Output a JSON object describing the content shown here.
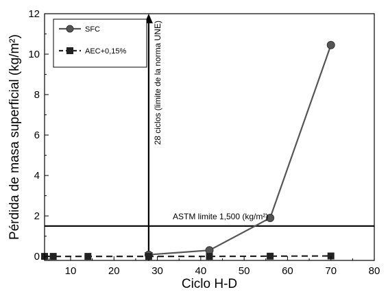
{
  "chart_data": {
    "type": "line",
    "title": "",
    "xlabel": "Ciclo H-D",
    "ylabel": "Pérdida de masa superficial (kg/m²)",
    "xlim": [
      4,
      80
    ],
    "ylim": [
      -0.2,
      12
    ],
    "xticks": [
      10,
      20,
      30,
      40,
      50,
      60,
      70,
      80
    ],
    "yticks": [
      0,
      2,
      4,
      6,
      8,
      10,
      12
    ],
    "grid": false,
    "legend_position": "top-left",
    "series": [
      {
        "name": "SFC",
        "marker": "circle",
        "line": "solid",
        "color": "#555555",
        "x": [
          28,
          42,
          56,
          70
        ],
        "y": [
          0.08,
          0.3,
          1.9,
          10.45
        ]
      },
      {
        "name": "AEC+0,15%",
        "marker": "square",
        "line": "dashed",
        "color": "#222222",
        "x": [
          4,
          6,
          14,
          28,
          42,
          56,
          70
        ],
        "y": [
          0,
          0,
          0,
          0,
          0,
          0.01,
          0.02
        ]
      }
    ],
    "reference_lines": [
      {
        "orientation": "horizontal",
        "value": 1.5,
        "label": "ASTM limite 1,500 (kg/m²)"
      },
      {
        "orientation": "vertical",
        "value": 28,
        "label": "28 ciclos (limite de la norma UNE)"
      }
    ]
  }
}
